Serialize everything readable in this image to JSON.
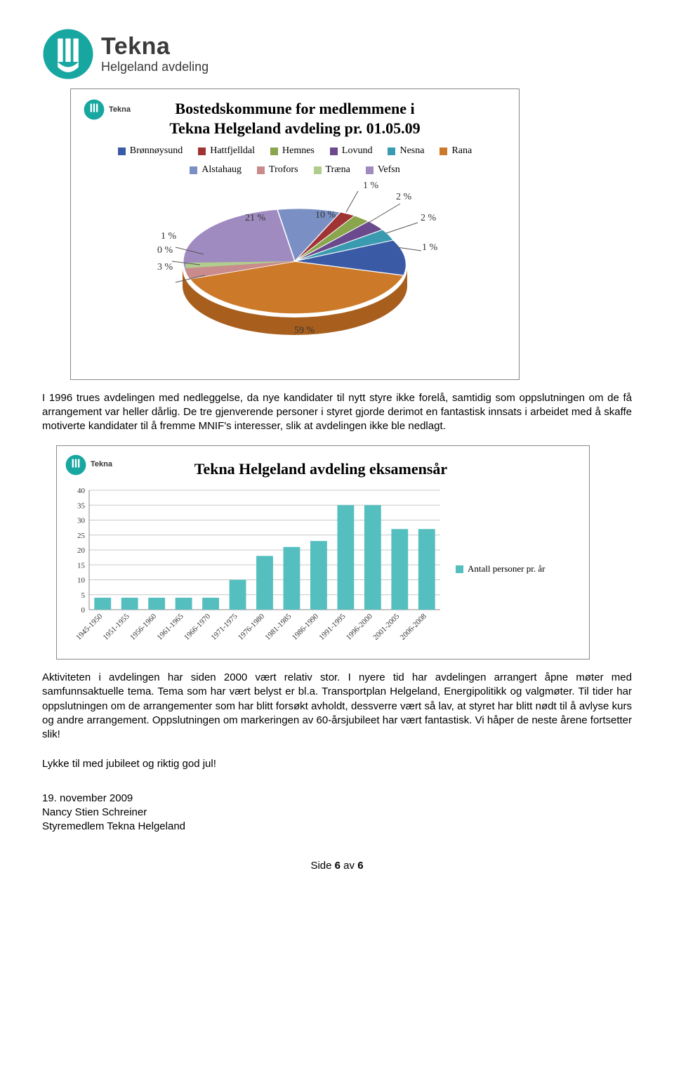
{
  "brand": {
    "primary": "Tekna",
    "secondary": "Helgeland avdeling",
    "logo_color": "#18a6a0"
  },
  "pie": {
    "title_line1": "Bostedskommune for medlemmene i",
    "title_line2": "Tekna Helgeland avdeling pr. 01.05.09",
    "small_brand": "Tekna",
    "items": [
      {
        "label": "Brønnøysund",
        "color": "#3a5aa6"
      },
      {
        "label": "Hattfjelldal",
        "color": "#a03435"
      },
      {
        "label": "Hemnes",
        "color": "#8aa64d"
      },
      {
        "label": "Lovund",
        "color": "#6a4a8c"
      },
      {
        "label": "Nesna",
        "color": "#3a9ab0"
      },
      {
        "label": "Rana",
        "color": "#cc7a2a"
      },
      {
        "label": "Alstahaug",
        "color": "#7a8fc4"
      },
      {
        "label": "Trofors",
        "color": "#c98b8c"
      },
      {
        "label": "Træna",
        "color": "#b2cc8d"
      },
      {
        "label": "Vefsn",
        "color": "#a08bc0"
      }
    ],
    "callouts": {
      "left_1pct": "1 %",
      "left_0pct": "0 %",
      "left_3pct": "3 %",
      "top_21pct": "21 %",
      "top_10pct": "10 %",
      "top_1pct": "1 %",
      "right_2pct_a": "2 %",
      "right_2pct_b": "2 %",
      "right_1pct": "1 %",
      "main_59pct": "59 %"
    },
    "background_color": "#ffffff"
  },
  "bar": {
    "title": "Tekna Helgeland avdeling eksamensår",
    "small_brand": "Tekna",
    "legend_label": "Antall personer pr. år",
    "bar_color": "#55bfbf",
    "grid_color": "#c8c8c8",
    "ylim": [
      0,
      40
    ],
    "ytick_step": 5,
    "categories": [
      "1945-1950",
      "1951-1955",
      "1956-1960",
      "1961-1965",
      "1966-1970",
      "1971-1975",
      "1976-1980",
      "1981-1985",
      "1986-1990",
      "1991-1995",
      "1996-2000",
      "2001-2005",
      "2006-2008"
    ],
    "values": [
      4,
      4,
      4,
      4,
      4,
      10,
      18,
      21,
      23,
      35,
      35,
      27,
      27
    ]
  },
  "paragraphs": {
    "p1": "I 1996 trues avdelingen med nedleggelse, da nye kandidater til nytt styre ikke forelå, samtidig som oppslutningen om de få arrangement var heller dårlig. De tre gjenverende personer i styret gjorde derimot en fantastisk innsats i arbeidet med å skaffe motiverte kandidater til å fremme MNIF's interesser, slik at avdelingen ikke ble nedlagt.",
    "p2": "Aktiviteten i avdelingen har siden 2000 vært relativ stor. I nyere tid har avdelingen arrangert åpne møter med samfunnsaktuelle tema. Tema som har vært belyst er bl.a. Transportplan Helgeland, Energipolitikk og valgmøter. Til tider har oppslutningen om de arrangementer som har blitt forsøkt avholdt, dessverre vært så lav, at styret har blitt nødt til å avlyse kurs og andre arrangement. Oppslutningen om markeringen av 60-årsjubileet har vært fantastisk. Vi håper de neste årene fortsetter slik!",
    "closing": "Lykke til med jubileet og riktig god jul!",
    "date": "19. november 2009",
    "name": "Nancy Stien Schreiner",
    "role": "Styremedlem Tekna Helgeland"
  },
  "footer": {
    "page_label": "Side",
    "cur": "6",
    "of": "av",
    "total": "6"
  }
}
